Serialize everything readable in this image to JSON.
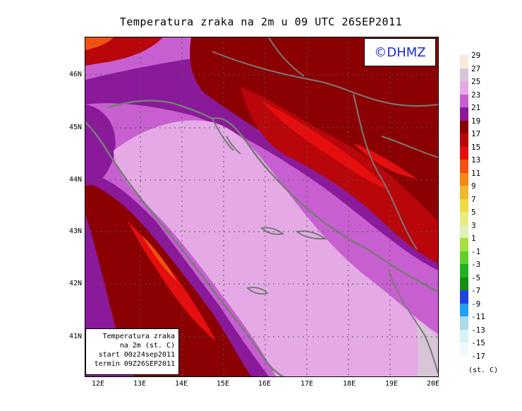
{
  "title": "Temperatura zraka na 2m u 09 UTC 26SEP2011",
  "logo": "©DHMZ",
  "info_box": {
    "line1": "Temperatura zraka",
    "line2": "na 2m (st. C)",
    "line3": "start 00z24sep2011",
    "line4": "termin 09Z26SEP2011"
  },
  "lat_labels": [
    "46N",
    "45N",
    "44N",
    "43N",
    "42N",
    "41N"
  ],
  "lon_labels": [
    "12E",
    "13E",
    "14E",
    "15E",
    "16E",
    "17E",
    "18E",
    "19E",
    "20E"
  ],
  "legend": {
    "labels": [
      "29",
      "27",
      "25",
      "23",
      "21",
      "19",
      "17",
      "15",
      "13",
      "11",
      "9",
      "7",
      "5",
      "3",
      "1",
      "-1",
      "-3",
      "-5",
      "-7",
      "-9",
      "-11",
      "-13",
      "-15",
      "-17"
    ],
    "colors": [
      "#fbe8dc",
      "#d8c6d8",
      "#e5aae6",
      "#c85fd0",
      "#8a1a9a",
      "#8b0000",
      "#b8060a",
      "#e50e0e",
      "#f05010",
      "#f5861a",
      "#eeb830",
      "#eedd40",
      "#e8eb80",
      "#dff0b8",
      "#a8df40",
      "#5ed02a",
      "#20b020",
      "#148f14",
      "#2044e0",
      "#209ff0",
      "#a8dce8",
      "#d8f2f8",
      "#eefbfd"
    ],
    "unit": "(st. C)"
  }
}
